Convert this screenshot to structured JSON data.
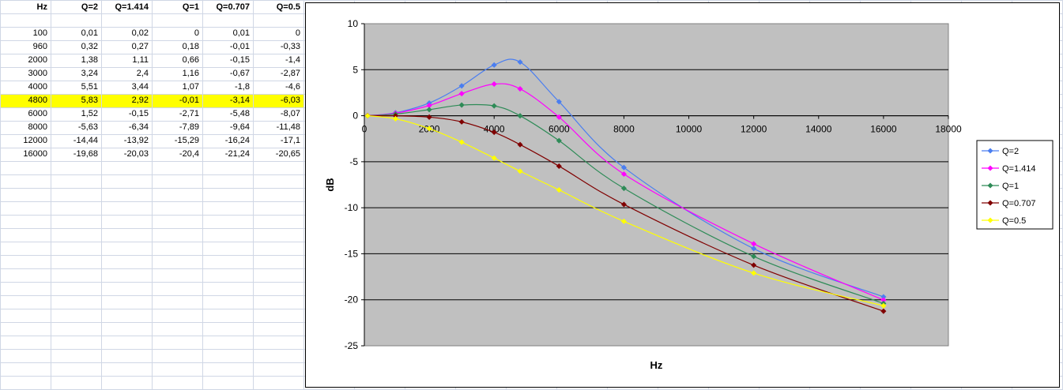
{
  "sheet": {
    "headers": [
      "Hz",
      "Q=2",
      "Q=1.414",
      "Q=1",
      "Q=0.707",
      "Q=0.5"
    ],
    "highlight_color": "#ffff00",
    "rows": [
      [
        "100",
        "0,01",
        "0,02",
        "0",
        "0,01",
        "0"
      ],
      [
        "960",
        "0,32",
        "0,27",
        "0,18",
        "-0,01",
        "-0,33"
      ],
      [
        "2000",
        "1,38",
        "1,11",
        "0,66",
        "-0,15",
        "-1,4"
      ],
      [
        "3000",
        "3,24",
        "2,4",
        "1,16",
        "-0,67",
        "-2,87"
      ],
      [
        "4000",
        "5,51",
        "3,44",
        "1,07",
        "-1,8",
        "-4,6"
      ],
      [
        "4800",
        "5,83",
        "2,92",
        "-0,01",
        "-3,14",
        "-6,03"
      ],
      [
        "6000",
        "1,52",
        "-0,15",
        "-2,71",
        "-5,48",
        "-8,07"
      ],
      [
        "8000",
        "-5,63",
        "-6,34",
        "-7,89",
        "-9,64",
        "-11,48"
      ],
      [
        "12000",
        "-14,44",
        "-13,92",
        "-15,29",
        "-16,24",
        "-17,1"
      ],
      [
        "16000",
        "-19,68",
        "-20,03",
        "-20,4",
        "-21,24",
        "-20,65"
      ]
    ],
    "highlight_row_index": 5
  },
  "chart_data": {
    "type": "line",
    "title": "",
    "xlabel": "Hz",
    "ylabel": "dB",
    "xlim": [
      0,
      18000
    ],
    "ylim": [
      -25,
      10
    ],
    "xticks": [
      0,
      2000,
      4000,
      6000,
      8000,
      10000,
      12000,
      14000,
      16000,
      18000
    ],
    "yticks": [
      10,
      5,
      0,
      -5,
      -10,
      -15,
      -20,
      -25
    ],
    "grid": "horizontal",
    "plot_background": "#c0c0c0",
    "legend_position": "right",
    "x": [
      100,
      960,
      2000,
      3000,
      4000,
      4800,
      6000,
      8000,
      12000,
      16000
    ],
    "series": [
      {
        "name": "Q=2",
        "color": "#4a7ef0",
        "values": [
          0.01,
          0.32,
          1.38,
          3.24,
          5.51,
          5.83,
          1.52,
          -5.63,
          -14.44,
          -19.68
        ]
      },
      {
        "name": "Q=1.414",
        "color": "#ff00ff",
        "values": [
          0.02,
          0.27,
          1.11,
          2.4,
          3.44,
          2.92,
          -0.15,
          -6.34,
          -13.92,
          -20.03
        ]
      },
      {
        "name": "Q=1",
        "color": "#2e8b57",
        "values": [
          0,
          0.18,
          0.66,
          1.16,
          1.07,
          -0.01,
          -2.71,
          -7.89,
          -15.29,
          -20.4
        ]
      },
      {
        "name": "Q=0.707",
        "color": "#800000",
        "values": [
          0.01,
          -0.01,
          -0.15,
          -0.67,
          -1.8,
          -3.14,
          -5.48,
          -9.64,
          -16.24,
          -21.24
        ]
      },
      {
        "name": "Q=0.5",
        "color": "#ffff00",
        "values": [
          0,
          -0.33,
          -1.4,
          -2.87,
          -4.6,
          -6.03,
          -8.07,
          -11.48,
          -17.1,
          -20.65
        ]
      }
    ]
  }
}
